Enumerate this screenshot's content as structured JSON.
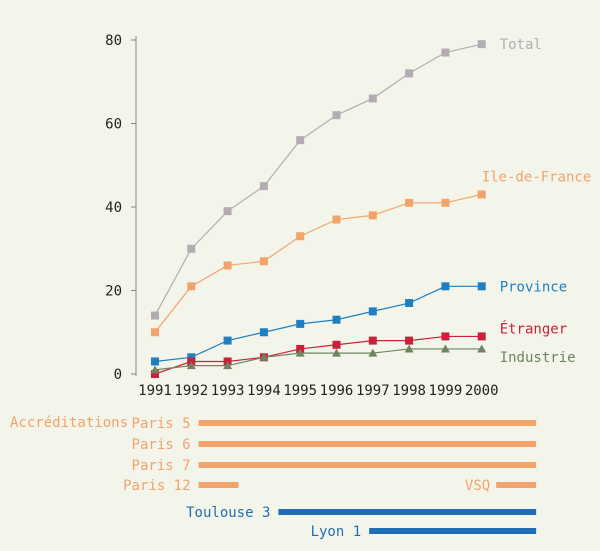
{
  "chart_data": {
    "type": "line",
    "x": [
      1991,
      1992,
      1993,
      1994,
      1995,
      1996,
      1997,
      1998,
      1999,
      2000
    ],
    "ylim": [
      0,
      80
    ],
    "yticks": [
      0,
      20,
      40,
      60,
      80
    ],
    "series": [
      {
        "name": "Total",
        "color": "#b3acb4",
        "marker": "square",
        "values": [
          14,
          30,
          39,
          45,
          56,
          62,
          66,
          72,
          77,
          79
        ]
      },
      {
        "name": "Ile-de-France",
        "color": "#f2a36c",
        "marker": "square",
        "values": [
          10,
          21,
          26,
          27,
          33,
          37,
          38,
          41,
          41,
          43
        ]
      },
      {
        "name": "Province",
        "color": "#1f7fc0",
        "marker": "square",
        "values": [
          3,
          4,
          8,
          10,
          12,
          13,
          15,
          17,
          21,
          21
        ]
      },
      {
        "name": "Étranger",
        "color": "#cc1f3a",
        "marker": "square",
        "values": [
          0,
          3,
          3,
          4,
          6,
          7,
          8,
          8,
          9,
          9
        ]
      },
      {
        "name": "Industrie",
        "color": "#6c8560",
        "marker": "triangle",
        "values": [
          1,
          2,
          2,
          4,
          5,
          5,
          5,
          6,
          6,
          6
        ]
      }
    ],
    "accreditations": {
      "heading": "Accréditations",
      "bars": [
        {
          "label": "Paris 5",
          "start": 1992.2,
          "end": 2001.5,
          "color": "#f2a36c"
        },
        {
          "label": "Paris 6",
          "start": 1992.2,
          "end": 2001.5,
          "color": "#f2a36c"
        },
        {
          "label": "Paris 7",
          "start": 1992.2,
          "end": 2001.5,
          "color": "#f2a36c"
        },
        {
          "label": "Paris 12",
          "start": 1992.2,
          "end": 1993.3,
          "color": "#f2a36c"
        },
        {
          "label": "VSQ",
          "start": 2000.4,
          "end": 2001.5,
          "color": "#f2a36c"
        },
        {
          "label": "Toulouse 3",
          "start": 1994.4,
          "end": 2001.5,
          "color": "#1f6eb5"
        },
        {
          "label": "Lyon 1",
          "start": 1996.9,
          "end": 2001.5,
          "color": "#1f6eb5"
        }
      ]
    }
  }
}
